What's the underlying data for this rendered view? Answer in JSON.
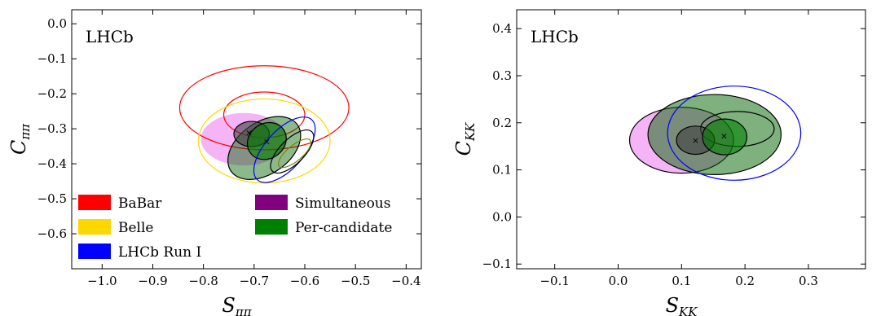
{
  "chart_data": [
    {
      "type": "scatter",
      "panel_label": "LHCb",
      "xlabel": {
        "main": "S",
        "sub": "ππ"
      },
      "ylabel": {
        "main": "C",
        "sub": "ππ"
      },
      "xlim": [
        -1.06,
        -0.37
      ],
      "ylim": [
        -0.7,
        0.04
      ],
      "xticks": [
        -1.0,
        -0.9,
        -0.8,
        -0.7,
        -0.6,
        -0.5,
        -0.4
      ],
      "xtick_labels": [
        "−1.0",
        "−0.9",
        "−0.8",
        "−0.7",
        "−0.6",
        "−0.5",
        "−0.4"
      ],
      "yticks": [
        0.0,
        -0.1,
        -0.2,
        -0.3,
        -0.4,
        -0.5,
        -0.6
      ],
      "ytick_labels": [
        "0.0",
        "−0.1",
        "−0.2",
        "−0.3",
        "−0.4",
        "−0.5",
        "−0.6"
      ],
      "legend": {
        "placement": "lower-left",
        "entries": [
          {
            "label": "BaBar",
            "color": "#ff0000"
          },
          {
            "label": "Simultaneous",
            "color": "#800080"
          },
          {
            "label": "Belle",
            "color": "#ffd700"
          },
          {
            "label": "Per-candidate",
            "color": "#008000"
          },
          {
            "label": "LHCb Run I",
            "color": "#0000ff"
          }
        ]
      },
      "ellipses": [
        {
          "series": "Simultaneous",
          "cx": -0.72,
          "cy": -0.33,
          "rx": 0.085,
          "ry": 0.075,
          "fill": "#ee82ee",
          "opacity": 0.6,
          "stroke": "none"
        },
        {
          "series": "BaBar",
          "cx": -0.68,
          "cy": -0.24,
          "rx": 0.167,
          "ry": 0.12,
          "fill": "none",
          "stroke": "#ff0000"
        },
        {
          "series": "BaBar",
          "cx": -0.68,
          "cy": -0.26,
          "rx": 0.08,
          "ry": 0.065,
          "fill": "none",
          "stroke": "#ff0000"
        },
        {
          "series": "Belle",
          "cx": -0.68,
          "cy": -0.335,
          "rx": 0.13,
          "ry": 0.12,
          "fill": "none",
          "stroke": "#ffd700"
        },
        {
          "series": "Per-candidate",
          "cx": -0.68,
          "cy": -0.355,
          "rx": 0.08,
          "ry": 0.074,
          "fill": "#006400",
          "opacity": 0.45,
          "stroke": "#000000",
          "rotate": -35
        },
        {
          "series": "Simultaneous",
          "cx": -0.705,
          "cy": -0.315,
          "rx": 0.035,
          "ry": 0.036,
          "fill": "#404040",
          "opacity": 0.6,
          "stroke": "#000000"
        },
        {
          "series": "Per-candidate",
          "cx": -0.675,
          "cy": -0.335,
          "rx": 0.04,
          "ry": 0.05,
          "fill": "#008000",
          "opacity": 0.6,
          "stroke": "#000000",
          "rotate": -35
        },
        {
          "series": "LHCb Run I",
          "cx": -0.64,
          "cy": -0.36,
          "rx": 0.08,
          "ry": 0.055,
          "fill": "none",
          "stroke": "#0000ff",
          "rotate": -48
        },
        {
          "series": "LHCb Run I",
          "cx": -0.625,
          "cy": -0.365,
          "rx": 0.055,
          "ry": 0.035,
          "fill": "none",
          "stroke": "#000000",
          "rotate": -45
        },
        {
          "series": "LHCb Run I",
          "cx": -0.62,
          "cy": -0.37,
          "rx": 0.04,
          "ry": 0.022,
          "fill": "none",
          "stroke": "#808000",
          "rotate": -40
        }
      ],
      "markers": [
        {
          "x": -0.71,
          "y": -0.31
        },
        {
          "x": -0.675,
          "y": -0.336
        }
      ]
    },
    {
      "type": "scatter",
      "panel_label": "LHCb",
      "xlabel": {
        "main": "S",
        "sub": "KK"
      },
      "ylabel": {
        "main": "C",
        "sub": "KK"
      },
      "xlim": [
        -0.16,
        0.39
      ],
      "ylim": [
        -0.11,
        0.44
      ],
      "xticks": [
        -0.1,
        0.0,
        0.1,
        0.2,
        0.3
      ],
      "xtick_labels": [
        "−0.1",
        "0.0",
        "0.1",
        "0.2",
        "0.3"
      ],
      "yticks": [
        -0.1,
        0.0,
        0.1,
        0.2,
        0.3,
        0.4
      ],
      "ytick_labels": [
        "−0.1",
        "0.0",
        "0.1",
        "0.2",
        "0.3",
        "0.4"
      ],
      "ellipses": [
        {
          "series": "Simultaneous",
          "cx": 0.1,
          "cy": 0.163,
          "rx": 0.082,
          "ry": 0.07,
          "fill": "#ee82ee",
          "opacity": 0.6,
          "stroke": "#000000"
        },
        {
          "series": "Per-candidate",
          "cx": 0.152,
          "cy": 0.175,
          "rx": 0.105,
          "ry": 0.085,
          "fill": "#006400",
          "opacity": 0.5,
          "stroke": "#000000"
        },
        {
          "series": "LHCb Run I",
          "cx": 0.183,
          "cy": 0.178,
          "rx": 0.105,
          "ry": 0.1,
          "fill": "none",
          "stroke": "#0000ff"
        },
        {
          "series": "LHCb Run I",
          "cx": 0.188,
          "cy": 0.187,
          "rx": 0.058,
          "ry": 0.037,
          "fill": "none",
          "stroke": "#000000"
        },
        {
          "series": "Simultaneous",
          "cx": 0.122,
          "cy": 0.163,
          "rx": 0.03,
          "ry": 0.03,
          "fill": "#404040",
          "opacity": 0.6,
          "stroke": "#000000"
        },
        {
          "series": "Per-candidate",
          "cx": 0.168,
          "cy": 0.17,
          "rx": 0.035,
          "ry": 0.038,
          "fill": "#008000",
          "opacity": 0.6,
          "stroke": "#000000"
        }
      ],
      "markers": [
        {
          "x": 0.122,
          "y": 0.163
        },
        {
          "x": 0.167,
          "y": 0.173
        }
      ]
    }
  ]
}
